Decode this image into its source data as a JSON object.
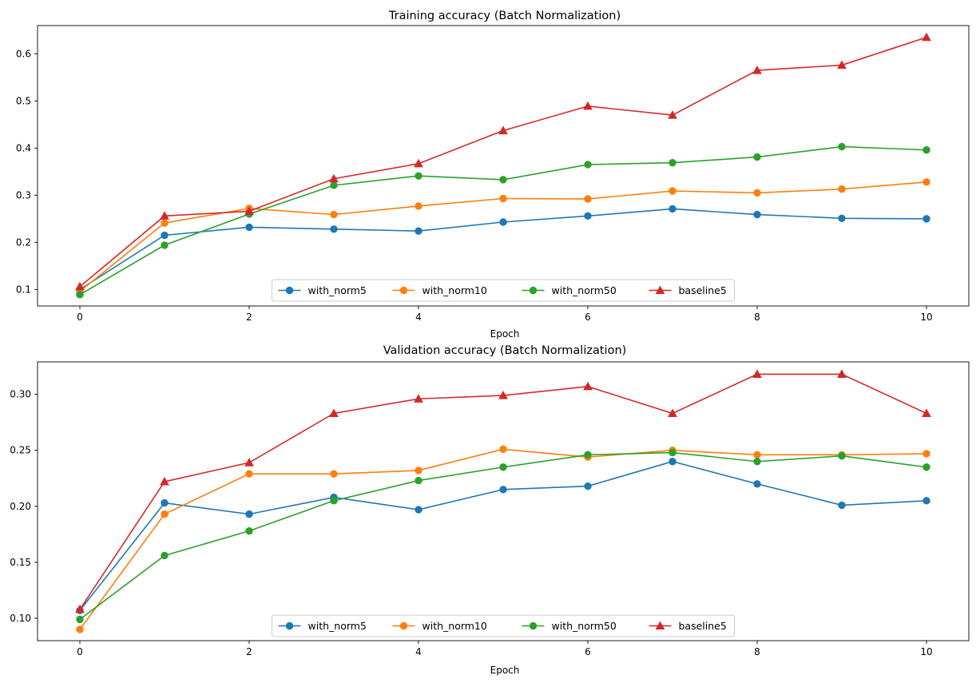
{
  "chart_data": [
    {
      "type": "line",
      "title": "Training accuracy (Batch Normalization)",
      "xlabel": "Epoch",
      "ylabel": "",
      "xlim": [
        -0.5,
        10.5
      ],
      "ylim": [
        0.065,
        0.66
      ],
      "xticks": [
        0,
        2,
        4,
        6,
        8,
        10
      ],
      "yticks": [
        0.1,
        0.2,
        0.3,
        0.4,
        0.5,
        0.6
      ],
      "ytick_labels": [
        "0.1",
        "0.2",
        "0.3",
        "0.4",
        "0.5",
        "0.6"
      ],
      "grid": false,
      "legend": "lower-center",
      "x": [
        0,
        1,
        2,
        3,
        4,
        5,
        6,
        7,
        8,
        9,
        10
      ],
      "series": [
        {
          "name": "with_norm5",
          "color": "#1f77b4",
          "marker": "circle",
          "values": [
            0.1,
            0.215,
            0.232,
            0.228,
            0.224,
            0.243,
            0.256,
            0.271,
            0.259,
            0.251,
            0.25
          ]
        },
        {
          "name": "with_norm10",
          "color": "#ff7f0e",
          "marker": "circle",
          "values": [
            0.096,
            0.241,
            0.272,
            0.259,
            0.277,
            0.293,
            0.292,
            0.309,
            0.305,
            0.313,
            0.328
          ]
        },
        {
          "name": "with_norm50",
          "color": "#2ca02c",
          "marker": "circle",
          "values": [
            0.089,
            0.194,
            0.26,
            0.321,
            0.341,
            0.333,
            0.365,
            0.369,
            0.381,
            0.403,
            0.396
          ]
        },
        {
          "name": "baseline5",
          "color": "#d62728",
          "marker": "triangle",
          "values": [
            0.106,
            0.256,
            0.266,
            0.335,
            0.367,
            0.437,
            0.489,
            0.47,
            0.565,
            0.576,
            0.635
          ]
        }
      ]
    },
    {
      "type": "line",
      "title": "Validation accuracy (Batch Normalization)",
      "xlabel": "Epoch",
      "ylabel": "",
      "xlim": [
        -0.5,
        10.5
      ],
      "ylim": [
        0.08,
        0.329
      ],
      "xticks": [
        0,
        2,
        4,
        6,
        8,
        10
      ],
      "yticks": [
        0.1,
        0.15,
        0.2,
        0.25,
        0.3
      ],
      "ytick_labels": [
        "0.10",
        "0.15",
        "0.20",
        "0.25",
        "0.30"
      ],
      "grid": false,
      "legend": "lower-center",
      "x": [
        0,
        1,
        2,
        3,
        4,
        5,
        6,
        7,
        8,
        9,
        10
      ],
      "series": [
        {
          "name": "with_norm5",
          "color": "#1f77b4",
          "marker": "circle",
          "values": [
            0.107,
            0.203,
            0.193,
            0.208,
            0.197,
            0.215,
            0.218,
            0.24,
            0.22,
            0.201,
            0.205
          ]
        },
        {
          "name": "with_norm10",
          "color": "#ff7f0e",
          "marker": "circle",
          "values": [
            0.09,
            0.193,
            0.229,
            0.229,
            0.232,
            0.251,
            0.244,
            0.25,
            0.246,
            0.246,
            0.247
          ]
        },
        {
          "name": "with_norm50",
          "color": "#2ca02c",
          "marker": "circle",
          "values": [
            0.099,
            0.156,
            0.178,
            0.205,
            0.223,
            0.235,
            0.246,
            0.248,
            0.24,
            0.245,
            0.235
          ]
        },
        {
          "name": "baseline5",
          "color": "#d62728",
          "marker": "triangle",
          "values": [
            0.108,
            0.222,
            0.239,
            0.283,
            0.296,
            0.299,
            0.307,
            0.283,
            0.318,
            0.318,
            0.283
          ]
        }
      ]
    }
  ]
}
